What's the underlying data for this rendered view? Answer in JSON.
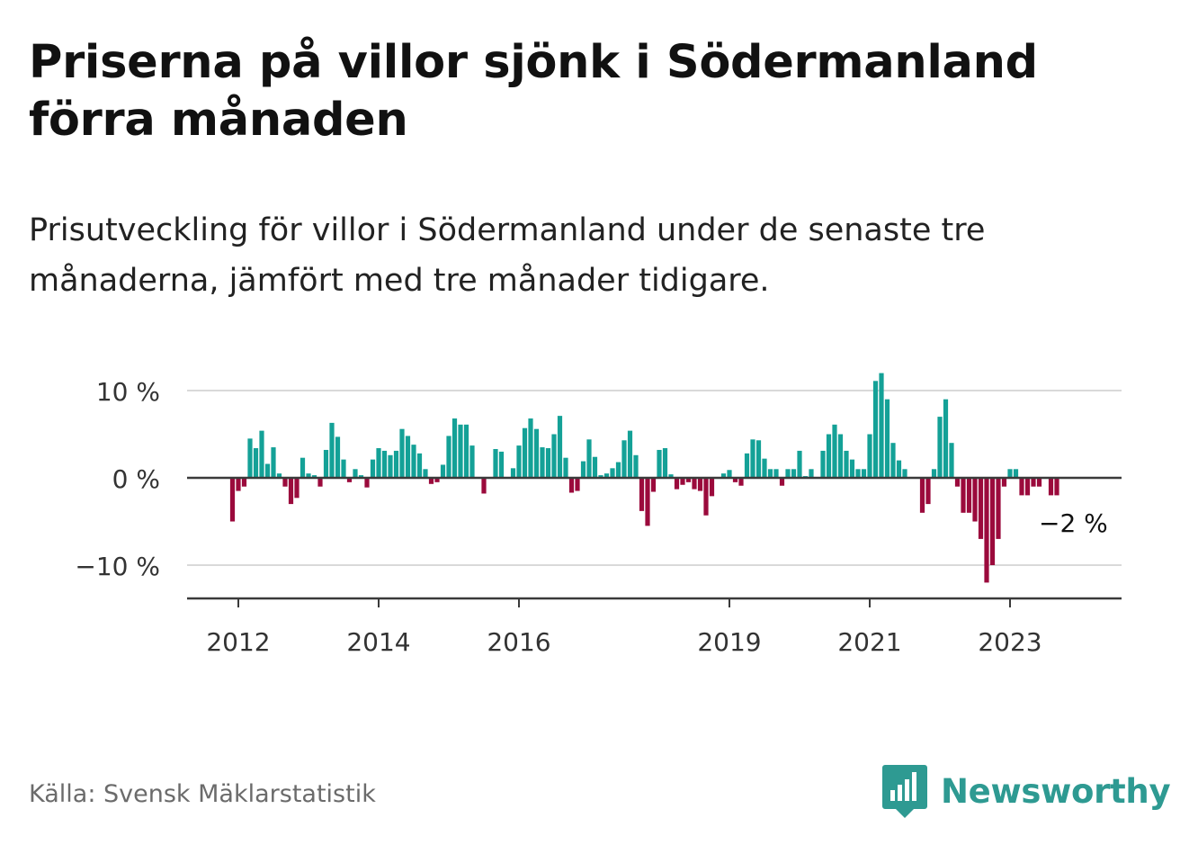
{
  "title": "Priserna på villor sjönk i Södermanland förra månaden",
  "subtitle": "Prisutveckling för villor i Södermanland under de senaste tre månaderna, jämfört med tre månader tidigare.",
  "source": "Källa: Svensk Mäklarstatistik",
  "brand": {
    "name": "Newsworthy",
    "color": "#2e9a92"
  },
  "chart_data": {
    "type": "bar",
    "x_start": "2011-12",
    "frequency": "monthly",
    "unit": "%",
    "ylim": [
      -14,
      10
    ],
    "y_ticks": [
      {
        "value": 10,
        "label": "10 %"
      },
      {
        "value": 0,
        "label": "0 %"
      },
      {
        "value": -10,
        "label": "−10 %"
      }
    ],
    "x_ticks": [
      "2012",
      "2014",
      "2016",
      "2019",
      "2021",
      "2023"
    ],
    "grid": true,
    "colors": {
      "positive": "#14a197",
      "negative": "#9b0a3c"
    },
    "annotation": "−2 %",
    "values": [
      -5,
      -1.5,
      -1,
      4.5,
      3.4,
      5.4,
      1.6,
      3.5,
      0.5,
      -1,
      -3,
      -2.3,
      2.3,
      0.5,
      0.3,
      -1,
      3.2,
      6.3,
      4.7,
      2.1,
      -0.5,
      1,
      0.3,
      -1.1,
      2.1,
      3.4,
      3.1,
      2.6,
      3.1,
      5.6,
      4.8,
      3.8,
      2.8,
      1,
      -0.7,
      -0.5,
      1.5,
      4.8,
      6.8,
      6.1,
      6.1,
      3.7,
      0,
      -1.8,
      0,
      3.3,
      3,
      0,
      1.1,
      3.7,
      5.7,
      6.8,
      5.6,
      3.5,
      3.4,
      5,
      7.1,
      2.3,
      -1.7,
      -1.5,
      1.9,
      4.4,
      2.4,
      0.3,
      0.5,
      1.1,
      1.8,
      4.3,
      5.4,
      2.6,
      -3.8,
      -5.5,
      -1.6,
      3.2,
      3.4,
      0.4,
      -1.3,
      -0.8,
      -0.5,
      -1.3,
      -1.5,
      -4.3,
      -2.1,
      0,
      0.5,
      0.9,
      -0.5,
      -0.9,
      2.8,
      4.4,
      4.3,
      2.2,
      1,
      1,
      -0.9,
      1,
      1,
      3.1,
      0.2,
      1,
      0,
      3.1,
      5,
      6.1,
      5,
      3.1,
      2.1,
      1,
      1,
      5,
      11.1,
      12,
      9,
      4,
      2,
      1,
      0,
      0,
      -4,
      -3,
      1,
      7,
      9,
      4,
      -1,
      -4,
      -4,
      -5,
      -7,
      -12,
      -10,
      -7,
      -1,
      1,
      1,
      -2,
      -2,
      -1,
      -1,
      0,
      -2,
      -2
    ]
  }
}
